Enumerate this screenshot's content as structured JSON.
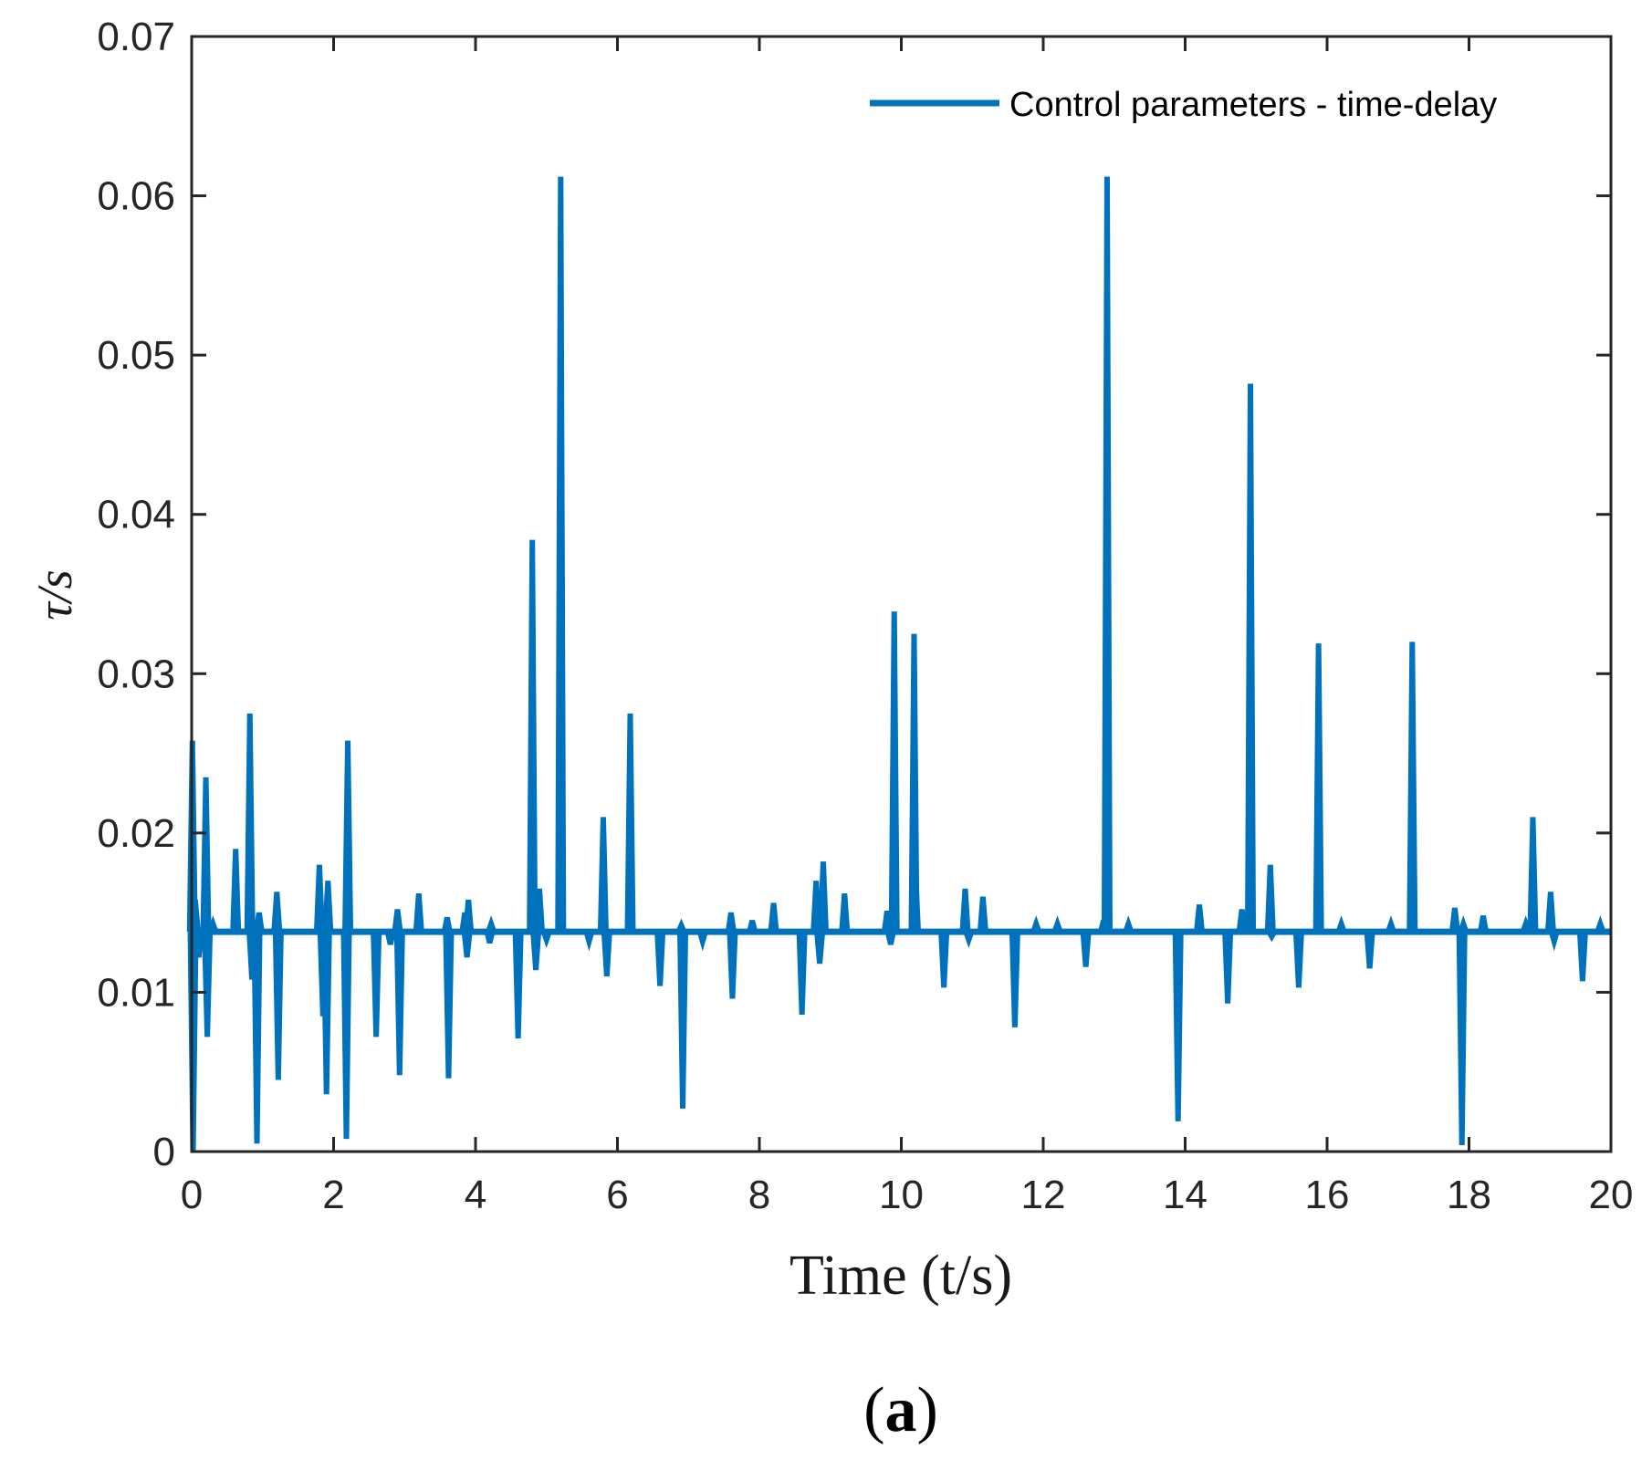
{
  "chart_data": {
    "type": "line",
    "xlabel": "Time (t/s)",
    "ylabel": "τ/s",
    "xlim": [
      0,
      20
    ],
    "ylim": [
      0,
      0.07
    ],
    "x_ticks": [
      0,
      2,
      4,
      6,
      8,
      10,
      12,
      14,
      16,
      18,
      20
    ],
    "x_tick_labels": [
      "0",
      "2",
      "4",
      "6",
      "8",
      "10",
      "12",
      "14",
      "16",
      "18",
      "20"
    ],
    "y_ticks": [
      0,
      0.01,
      0.02,
      0.03,
      0.04,
      0.05,
      0.06,
      0.07
    ],
    "y_tick_labels": [
      "0",
      "0.01",
      "0.02",
      "0.03",
      "0.04",
      "0.05",
      "0.06",
      "0.07"
    ],
    "grid": false,
    "legend": {
      "position": "top-right",
      "entries": [
        "Control parameters - time-delay"
      ]
    },
    "series": [
      {
        "name": "Control parameters - time-delay",
        "color": "#0072BD",
        "baseline": 0.0138,
        "spikes": [
          [
            0.01,
            0.0258
          ],
          [
            0.02,
            0.0
          ],
          [
            0.05,
            0.0158
          ],
          [
            0.1,
            0.0122
          ],
          [
            0.2,
            0.0235
          ],
          [
            0.22,
            0.0072
          ],
          [
            0.3,
            0.0143
          ],
          [
            0.62,
            0.019
          ],
          [
            0.82,
            0.0275
          ],
          [
            0.85,
            0.0108
          ],
          [
            0.92,
            0.0005
          ],
          [
            0.95,
            0.015
          ],
          [
            1.2,
            0.0163
          ],
          [
            1.22,
            0.0045
          ],
          [
            1.8,
            0.018
          ],
          [
            1.85,
            0.0085
          ],
          [
            1.9,
            0.0036
          ],
          [
            1.92,
            0.017
          ],
          [
            2.18,
            0.0008
          ],
          [
            2.2,
            0.0258
          ],
          [
            2.6,
            0.0072
          ],
          [
            2.8,
            0.013
          ],
          [
            2.9,
            0.0152
          ],
          [
            2.93,
            0.0048
          ],
          [
            3.2,
            0.0162
          ],
          [
            3.6,
            0.0147
          ],
          [
            3.62,
            0.0046
          ],
          [
            3.85,
            0.015
          ],
          [
            3.88,
            0.0122
          ],
          [
            3.9,
            0.0158
          ],
          [
            4.2,
            0.0131
          ],
          [
            4.22,
            0.0143
          ],
          [
            4.6,
            0.0071
          ],
          [
            4.8,
            0.0384
          ],
          [
            4.85,
            0.0114
          ],
          [
            4.9,
            0.0165
          ],
          [
            5.0,
            0.0133
          ],
          [
            5.2,
            0.0612
          ],
          [
            5.6,
            0.0132
          ],
          [
            5.8,
            0.021
          ],
          [
            5.85,
            0.011
          ],
          [
            6.18,
            0.0275
          ],
          [
            6.6,
            0.0104
          ],
          [
            6.65,
            0.0138
          ],
          [
            6.9,
            0.0142
          ],
          [
            6.92,
            0.0027
          ],
          [
            7.2,
            0.0132
          ],
          [
            7.6,
            0.015
          ],
          [
            7.62,
            0.0096
          ],
          [
            7.9,
            0.0145
          ],
          [
            8.2,
            0.0156
          ],
          [
            8.6,
            0.0086
          ],
          [
            8.8,
            0.017
          ],
          [
            8.85,
            0.0118
          ],
          [
            8.9,
            0.0182
          ],
          [
            9.2,
            0.0162
          ],
          [
            9.8,
            0.0151
          ],
          [
            9.85,
            0.013
          ],
          [
            9.9,
            0.0339
          ],
          [
            10.18,
            0.0325
          ],
          [
            10.2,
            0.0175
          ],
          [
            10.6,
            0.0103
          ],
          [
            10.9,
            0.0165
          ],
          [
            10.95,
            0.0133
          ],
          [
            11.15,
            0.016
          ],
          [
            11.6,
            0.0078
          ],
          [
            11.9,
            0.0143
          ],
          [
            12.2,
            0.0143
          ],
          [
            12.6,
            0.0116
          ],
          [
            12.85,
            0.0145
          ],
          [
            12.9,
            0.0612
          ],
          [
            13.2,
            0.0143
          ],
          [
            13.9,
            0.0019
          ],
          [
            14.2,
            0.0155
          ],
          [
            14.6,
            0.0093
          ],
          [
            14.8,
            0.0152
          ],
          [
            14.92,
            0.0482
          ],
          [
            15.2,
            0.018
          ],
          [
            15.22,
            0.0135
          ],
          [
            15.6,
            0.0103
          ],
          [
            15.88,
            0.0319
          ],
          [
            16.2,
            0.0143
          ],
          [
            16.6,
            0.0115
          ],
          [
            16.9,
            0.0143
          ],
          [
            17.2,
            0.032
          ],
          [
            17.8,
            0.0153
          ],
          [
            17.9,
            0.0004
          ],
          [
            17.92,
            0.0143
          ],
          [
            18.2,
            0.0148
          ],
          [
            18.8,
            0.0143
          ],
          [
            18.9,
            0.021
          ],
          [
            19.15,
            0.0163
          ],
          [
            19.2,
            0.0132
          ],
          [
            19.6,
            0.0107
          ],
          [
            19.85,
            0.0143
          ]
        ]
      }
    ]
  },
  "figure": {
    "caption_letter": "a",
    "paren_open": "(",
    "paren_close": ")"
  }
}
